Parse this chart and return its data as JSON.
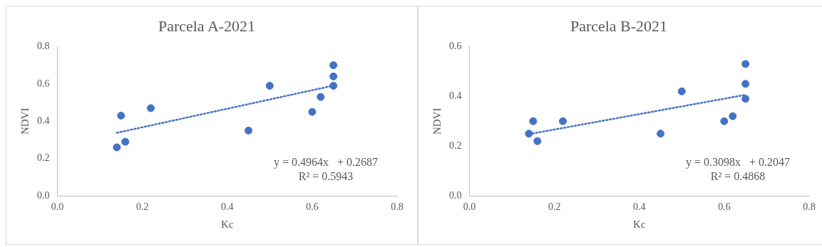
{
  "chart_data": [
    {
      "type": "scatter",
      "title": "Parcela A-2021",
      "xlabel": "Kc",
      "ylabel": "NDVI",
      "marker": "circle",
      "grid": false,
      "legend": false,
      "xlim": [
        0,
        0.8
      ],
      "xticks": [
        {
          "value": 0,
          "label": "0.0"
        },
        {
          "value": 0.2,
          "label": "0.2"
        },
        {
          "value": 0.4,
          "label": "0.4"
        },
        {
          "value": 0.6,
          "label": "0.6"
        },
        {
          "value": 0.8,
          "label": "0.8"
        }
      ],
      "ylim": [
        0,
        0.8
      ],
      "yticks": [
        {
          "value": 0,
          "label": "0.0"
        },
        {
          "value": 0.2,
          "label": "0.2"
        },
        {
          "value": 0.4,
          "label": "0.4"
        },
        {
          "value": 0.6,
          "label": "0.6"
        },
        {
          "value": 0.8,
          "label": "0.8"
        }
      ],
      "series": [
        {
          "type": "scatter",
          "color": "#4472c4",
          "x": [
            0.14,
            0.15,
            0.16,
            0.22,
            0.45,
            0.5,
            0.6,
            0.62,
            0.65,
            0.65,
            0.65
          ],
          "values": [
            0.26,
            0.43,
            0.29,
            0.47,
            0.35,
            0.59,
            0.45,
            0.53,
            0.59,
            0.64,
            0.7
          ]
        },
        {
          "type": "line",
          "color": "#4472c4",
          "line_style": "dotted",
          "marker": "none",
          "x": [
            0.14,
            0.65
          ],
          "values": [
            0.338,
            0.591
          ]
        }
      ],
      "annotations": [
        "y = 0.4964x   + 0.2687",
        "R² = 0.5943"
      ]
    },
    {
      "type": "scatter",
      "title": "Parcela B-2021",
      "xlabel": "Kc",
      "ylabel": "NDVI",
      "marker": "circle",
      "grid": false,
      "legend": false,
      "xlim": [
        0,
        0.8
      ],
      "xticks": [
        {
          "value": 0,
          "label": "0.0"
        },
        {
          "value": 0.2,
          "label": "0.2"
        },
        {
          "value": 0.4,
          "label": "0.4"
        },
        {
          "value": 0.6,
          "label": "0.6"
        },
        {
          "value": 0.8,
          "label": "0.8"
        }
      ],
      "ylim": [
        0,
        0.6
      ],
      "yticks": [
        {
          "value": 0,
          "label": "0.0"
        },
        {
          "value": 0.2,
          "label": "0.2"
        },
        {
          "value": 0.4,
          "label": "0.4"
        },
        {
          "value": 0.6,
          "label": "0.6"
        }
      ],
      "series": [
        {
          "type": "scatter",
          "color": "#4472c4",
          "x": [
            0.14,
            0.15,
            0.16,
            0.22,
            0.45,
            0.5,
            0.6,
            0.62,
            0.65,
            0.65,
            0.65
          ],
          "values": [
            0.25,
            0.3,
            0.22,
            0.3,
            0.25,
            0.42,
            0.3,
            0.32,
            0.39,
            0.45,
            0.53
          ]
        },
        {
          "type": "line",
          "color": "#4472c4",
          "line_style": "dotted",
          "marker": "none",
          "x": [
            0.14,
            0.65
          ],
          "values": [
            0.248,
            0.406
          ]
        }
      ],
      "annotations": [
        "y = 0.3098x   + 0.2047",
        "R² = 0.4868"
      ]
    }
  ]
}
